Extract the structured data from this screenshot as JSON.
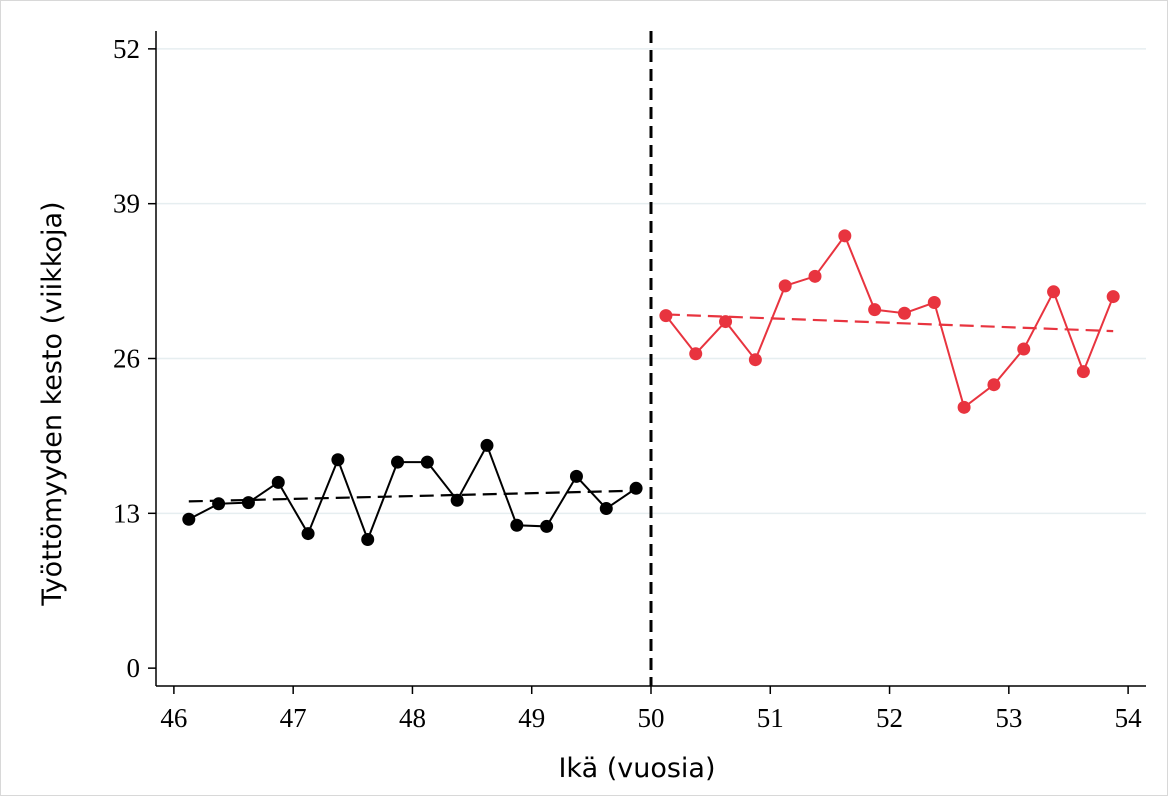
{
  "chart_data": {
    "type": "line",
    "xlabel": "Ikä (vuosia)",
    "ylabel": "Työttömyyden kesto (viikkoja)",
    "xlim": [
      45.85,
      54.15
    ],
    "ylim": [
      -1.5,
      53.5
    ],
    "xticks": [
      46,
      47,
      48,
      49,
      50,
      51,
      52,
      53,
      54
    ],
    "yticks": [
      0,
      13,
      26,
      39,
      52
    ],
    "grid": "horizontal",
    "cutoff": 50,
    "series": [
      {
        "color": "#000000",
        "x": [
          46.125,
          46.375,
          46.625,
          46.875,
          47.125,
          47.375,
          47.625,
          47.875,
          48.125,
          48.375,
          48.625,
          48.875,
          49.125,
          49.375,
          49.625,
          49.875
        ],
        "y": [
          12.5,
          13.8,
          13.9,
          15.6,
          11.3,
          17.5,
          10.8,
          17.3,
          17.3,
          14.1,
          18.7,
          12.0,
          11.9,
          16.1,
          13.4,
          15.1
        ],
        "fit": [
          14.0,
          14.9
        ]
      },
      {
        "color": "#e8343f",
        "x": [
          50.125,
          50.375,
          50.625,
          50.875,
          51.125,
          51.375,
          51.625,
          51.875,
          52.125,
          52.375,
          52.625,
          52.875,
          53.125,
          53.375,
          53.625,
          53.875
        ],
        "y": [
          29.6,
          26.4,
          29.1,
          25.9,
          32.1,
          32.9,
          36.3,
          30.1,
          29.8,
          30.7,
          21.9,
          23.8,
          26.8,
          31.6,
          24.9,
          31.2
        ],
        "fit": [
          29.7,
          28.3
        ]
      }
    ]
  }
}
